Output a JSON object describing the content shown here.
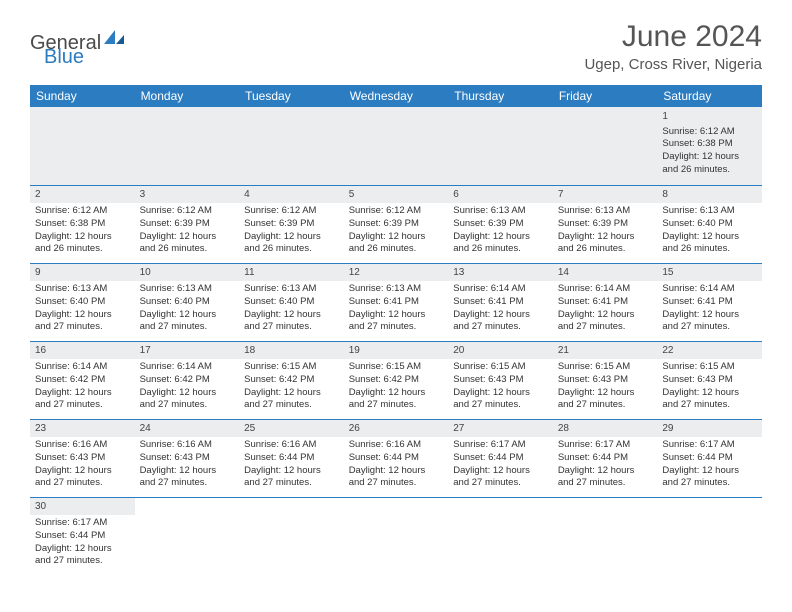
{
  "logo": {
    "part1": "General",
    "part2": "Blue"
  },
  "title": "June 2024",
  "location": "Ugep, Cross River, Nigeria",
  "colors": {
    "header_bg": "#2b7cc0",
    "header_text": "#ffffff",
    "row_border": "#2b7cc0",
    "daynum_bg": "#ecedee",
    "text": "#333333"
  },
  "day_headers": [
    "Sunday",
    "Monday",
    "Tuesday",
    "Wednesday",
    "Thursday",
    "Friday",
    "Saturday"
  ],
  "weeks": [
    [
      null,
      null,
      null,
      null,
      null,
      null,
      {
        "d": "1",
        "sr": "6:12 AM",
        "ss": "6:38 PM",
        "dl": "12 hours and 26 minutes."
      }
    ],
    [
      {
        "d": "2",
        "sr": "6:12 AM",
        "ss": "6:38 PM",
        "dl": "12 hours and 26 minutes."
      },
      {
        "d": "3",
        "sr": "6:12 AM",
        "ss": "6:39 PM",
        "dl": "12 hours and 26 minutes."
      },
      {
        "d": "4",
        "sr": "6:12 AM",
        "ss": "6:39 PM",
        "dl": "12 hours and 26 minutes."
      },
      {
        "d": "5",
        "sr": "6:12 AM",
        "ss": "6:39 PM",
        "dl": "12 hours and 26 minutes."
      },
      {
        "d": "6",
        "sr": "6:13 AM",
        "ss": "6:39 PM",
        "dl": "12 hours and 26 minutes."
      },
      {
        "d": "7",
        "sr": "6:13 AM",
        "ss": "6:39 PM",
        "dl": "12 hours and 26 minutes."
      },
      {
        "d": "8",
        "sr": "6:13 AM",
        "ss": "6:40 PM",
        "dl": "12 hours and 26 minutes."
      }
    ],
    [
      {
        "d": "9",
        "sr": "6:13 AM",
        "ss": "6:40 PM",
        "dl": "12 hours and 27 minutes."
      },
      {
        "d": "10",
        "sr": "6:13 AM",
        "ss": "6:40 PM",
        "dl": "12 hours and 27 minutes."
      },
      {
        "d": "11",
        "sr": "6:13 AM",
        "ss": "6:40 PM",
        "dl": "12 hours and 27 minutes."
      },
      {
        "d": "12",
        "sr": "6:13 AM",
        "ss": "6:41 PM",
        "dl": "12 hours and 27 minutes."
      },
      {
        "d": "13",
        "sr": "6:14 AM",
        "ss": "6:41 PM",
        "dl": "12 hours and 27 minutes."
      },
      {
        "d": "14",
        "sr": "6:14 AM",
        "ss": "6:41 PM",
        "dl": "12 hours and 27 minutes."
      },
      {
        "d": "15",
        "sr": "6:14 AM",
        "ss": "6:41 PM",
        "dl": "12 hours and 27 minutes."
      }
    ],
    [
      {
        "d": "16",
        "sr": "6:14 AM",
        "ss": "6:42 PM",
        "dl": "12 hours and 27 minutes."
      },
      {
        "d": "17",
        "sr": "6:14 AM",
        "ss": "6:42 PM",
        "dl": "12 hours and 27 minutes."
      },
      {
        "d": "18",
        "sr": "6:15 AM",
        "ss": "6:42 PM",
        "dl": "12 hours and 27 minutes."
      },
      {
        "d": "19",
        "sr": "6:15 AM",
        "ss": "6:42 PM",
        "dl": "12 hours and 27 minutes."
      },
      {
        "d": "20",
        "sr": "6:15 AM",
        "ss": "6:43 PM",
        "dl": "12 hours and 27 minutes."
      },
      {
        "d": "21",
        "sr": "6:15 AM",
        "ss": "6:43 PM",
        "dl": "12 hours and 27 minutes."
      },
      {
        "d": "22",
        "sr": "6:15 AM",
        "ss": "6:43 PM",
        "dl": "12 hours and 27 minutes."
      }
    ],
    [
      {
        "d": "23",
        "sr": "6:16 AM",
        "ss": "6:43 PM",
        "dl": "12 hours and 27 minutes."
      },
      {
        "d": "24",
        "sr": "6:16 AM",
        "ss": "6:43 PM",
        "dl": "12 hours and 27 minutes."
      },
      {
        "d": "25",
        "sr": "6:16 AM",
        "ss": "6:44 PM",
        "dl": "12 hours and 27 minutes."
      },
      {
        "d": "26",
        "sr": "6:16 AM",
        "ss": "6:44 PM",
        "dl": "12 hours and 27 minutes."
      },
      {
        "d": "27",
        "sr": "6:17 AM",
        "ss": "6:44 PM",
        "dl": "12 hours and 27 minutes."
      },
      {
        "d": "28",
        "sr": "6:17 AM",
        "ss": "6:44 PM",
        "dl": "12 hours and 27 minutes."
      },
      {
        "d": "29",
        "sr": "6:17 AM",
        "ss": "6:44 PM",
        "dl": "12 hours and 27 minutes."
      }
    ],
    [
      {
        "d": "30",
        "sr": "6:17 AM",
        "ss": "6:44 PM",
        "dl": "12 hours and 27 minutes."
      },
      null,
      null,
      null,
      null,
      null,
      null
    ]
  ],
  "labels": {
    "sunrise": "Sunrise:",
    "sunset": "Sunset:",
    "daylight": "Daylight:"
  }
}
